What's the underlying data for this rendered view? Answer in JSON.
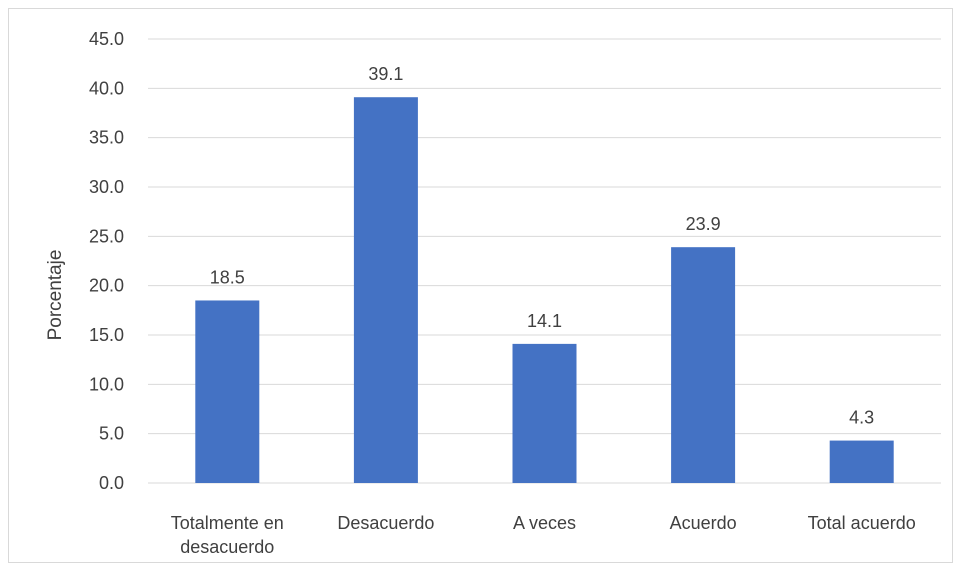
{
  "chart_data": {
    "type": "bar",
    "categories": [
      [
        "Totalmente en",
        "desacuerdo"
      ],
      [
        "Desacuerdo"
      ],
      [
        "A veces"
      ],
      [
        "Acuerdo"
      ],
      [
        "Total acuerdo"
      ]
    ],
    "values": [
      18.5,
      39.1,
      14.1,
      23.9,
      4.3
    ],
    "value_labels": [
      "18.5",
      "39.1",
      "14.1",
      "23.9",
      "4.3"
    ],
    "title": "",
    "xlabel": "",
    "ylabel": "Porcentaje",
    "ylim": [
      0,
      45
    ],
    "y_ticks": [
      "0.0",
      "5.0",
      "10.0",
      "15.0",
      "20.0",
      "25.0",
      "30.0",
      "35.0",
      "40.0",
      "45.0"
    ],
    "grid": true,
    "legend": "none",
    "colors": {
      "bar": "#4472c4",
      "grid": "#d9d9d9",
      "text": "#404040"
    }
  }
}
